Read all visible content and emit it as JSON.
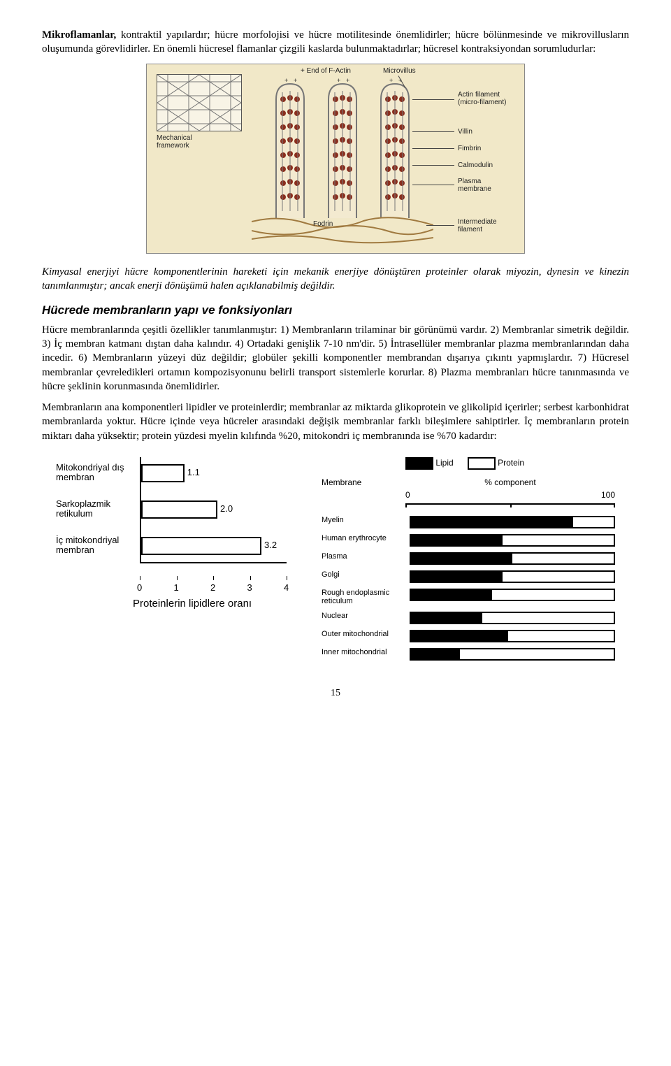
{
  "para1_lead": "Mikroflamanlar,",
  "para1_rest": " kontraktil yapılardır; hücre morfolojisi ve hücre motilitesinde önemlidirler; hücre bölünmesinde ve mikrovillusların oluşumunda görevlidirler. En önemli hücresel flamanlar çizgili kaslarda bulunmaktadırlar; hücresel kontraksiyondan sorumludurlar:",
  "microvillus": {
    "labels": {
      "mechanical": "Mechanical framework",
      "end_f_actin": "+ End of F-Actin",
      "microvillus": "Microvillus",
      "actin": "Actin filament (micro-filament)",
      "villin": "Villin",
      "fimbrin": "Fimbrin",
      "calmodulin": "Calmodulin",
      "plasma": "Plasma membrane",
      "fodrin": "Fodrin",
      "intermediate": "Intermediate filament"
    },
    "colors": {
      "bg": "#f1e8c8",
      "villus_fill": "#f3ead0",
      "bead": "#8a2f1f",
      "line": "#6a6a6a"
    }
  },
  "para2": "Kimyasal enerjiyi hücre komponentlerinin hareketi için mekanik enerjiye dönüştüren proteinler olarak miyozin, dynesin ve kinezin tanımlanmıştır; ancak enerji dönüşümü halen açıklanabilmiş değildir.",
  "heading1": "Hücrede membranların yapı ve fonksiyonları",
  "para3": "Hücre membranlarında   çeşitli özellikler tanımlanmıştır: 1) Membranların trilaminar bir görünümü vardır. 2) Membranlar simetrik değildir. 3) İç membran katmanı dıştan daha kalındır. 4) Ortadaki genişlik 7-10 nm'dir. 5) İntrasellüler membranlar plazma membranlarından daha incedir. 6) Membranların yüzeyi düz değildir; globüler şekilli komponentler membrandan dışarıya çıkıntı yapmışlardır. 7) Hücresel membranlar çevreledikleri ortamın kompozisyonunu belirli transport sistemlerle korurlar. 8) Plazma membranları hücre tanınmasında ve hücre şeklinin korunmasında önemlidirler.",
  "para4": "Membranların ana komponentleri lipidler ve proteinlerdir; membranlar az miktarda glikoprotein ve glikolipid içerirler; serbest karbonhidrat membranlarda yoktur. Hücre içinde veya hücreler arasındaki değişik membranlar farklı bileşimlere sahiptirler. İç membranların protein miktarı daha yüksektir; protein yüzdesi myelin kılıfında %20, mitokondri iç membranında ise %70 kadardır:",
  "chart1": {
    "categories": [
      "Mitokondriyal dış membran",
      "Sarkoplazmik retikulum",
      "İç mitokondriyal membran"
    ],
    "values": [
      1.1,
      2.0,
      3.2
    ],
    "xlabel": "Proteinlerin lipidlere oranı",
    "xmax": 4,
    "xticks": [
      0,
      1,
      2,
      3,
      4
    ],
    "bar_border": "#000000",
    "bar_fill": "#ffffff"
  },
  "chart2": {
    "legend": {
      "lipid": "Lipid",
      "protein": "Protein"
    },
    "header": {
      "membrane": "Membrane",
      "percent": "% component"
    },
    "scale": {
      "min": 0,
      "max": 100
    },
    "rows": [
      {
        "name": "Myelin",
        "lipid_pct": 80
      },
      {
        "name": "Human erythrocyte",
        "lipid_pct": 45
      },
      {
        "name": "Plasma",
        "lipid_pct": 50
      },
      {
        "name": "Golgi",
        "lipid_pct": 45
      },
      {
        "name": "Rough endoplasmic reticulum",
        "lipid_pct": 40
      },
      {
        "name": "Nuclear",
        "lipid_pct": 35
      },
      {
        "name": "Outer mitochondrial",
        "lipid_pct": 48
      },
      {
        "name": "Inner mitochondrial",
        "lipid_pct": 24
      }
    ],
    "colors": {
      "lipid": "#000000",
      "protein": "#ffffff",
      "border": "#000000"
    }
  },
  "page_number": "15"
}
